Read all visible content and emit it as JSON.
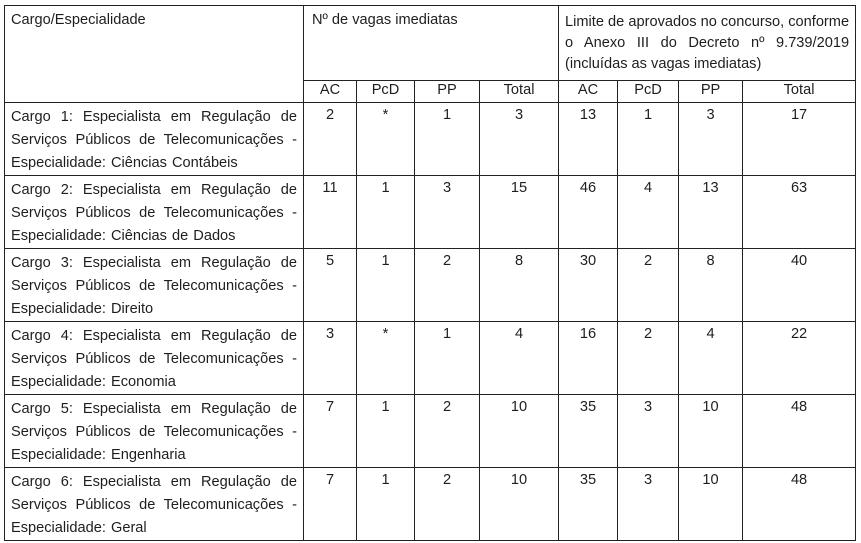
{
  "header": {
    "cargo": "Cargo/Especialidade",
    "vagas": "Nº de vagas imediatas",
    "limite": "Limite de aprovados no concurso, conforme o Anexo III do Decreto nº 9.739/2019 (incluídas as vagas imediatas)",
    "sub_vagas": [
      "AC",
      "PcD",
      "PP",
      "Total"
    ],
    "sub_limite": [
      "AC",
      "PcD",
      "PP",
      "Total"
    ]
  },
  "rows": [
    {
      "cargo": "Cargo 1: Especialista em Regulação de Serviços Públicos de Telecomunicações - Especialidade: Ciências Contábeis",
      "vagas": [
        "2",
        "*",
        "1",
        "3"
      ],
      "limite": [
        "13",
        "1",
        "3",
        "17"
      ]
    },
    {
      "cargo": "Cargo 2: Especialista em Regulação de Serviços Públicos de Telecomunicações - Especialidade: Ciências de Dados",
      "vagas": [
        "11",
        "1",
        "3",
        "15"
      ],
      "limite": [
        "46",
        "4",
        "13",
        "63"
      ]
    },
    {
      "cargo": "Cargo 3: Especialista em Regulação de Serviços Públicos de Telecomunicações - Especialidade: Direito",
      "vagas": [
        "5",
        "1",
        "2",
        "8"
      ],
      "limite": [
        "30",
        "2",
        "8",
        "40"
      ]
    },
    {
      "cargo": "Cargo 4: Especialista em Regulação de Serviços Públicos de Telecomunicações - Especialidade: Economia",
      "vagas": [
        "3",
        "*",
        "1",
        "4"
      ],
      "limite": [
        "16",
        "2",
        "4",
        "22"
      ]
    },
    {
      "cargo": "Cargo 5: Especialista em Regulação de Serviços Públicos de Telecomunicações - Especialidade: Engenharia",
      "vagas": [
        "7",
        "1",
        "2",
        "10"
      ],
      "limite": [
        "35",
        "3",
        "10",
        "48"
      ]
    },
    {
      "cargo": "Cargo 6: Especialista em Regulação de Serviços Públicos de Telecomunicações - Especialidade: Geral",
      "vagas": [
        "7",
        "1",
        "2",
        "10"
      ],
      "limite": [
        "35",
        "3",
        "10",
        "48"
      ]
    }
  ]
}
